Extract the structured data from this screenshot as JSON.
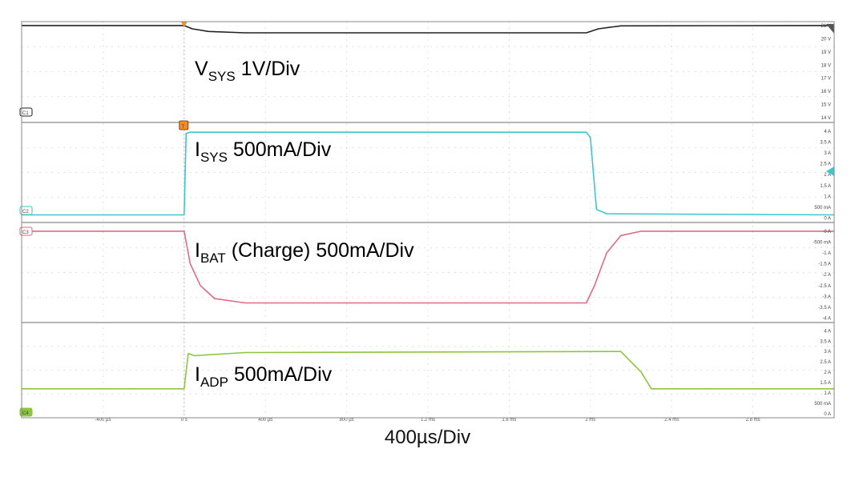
{
  "chart_data": {
    "type": "line",
    "timebase": "400µs/Div",
    "x_unit": "µs",
    "xlim": [
      -800,
      3200
    ],
    "x_ticks": [
      -400,
      0,
      400,
      800,
      1200,
      1600,
      2000,
      2400,
      2800
    ],
    "x_tick_labels": [
      "-400 µs",
      "0 s",
      "400 µs",
      "800 µs",
      "1.2 ms",
      "1.6 ms",
      "2 ms",
      "2.4 ms",
      "2.8 ms"
    ],
    "trigger_marker": "T",
    "colors": {
      "ch1": "#222222",
      "ch2": "#3ec6cf",
      "ch3": "#e06a80",
      "ch4": "#8cc63f"
    },
    "channels": [
      {
        "id": "C1",
        "label_main": "V",
        "label_sub": "SYS",
        "label_rest": " 1V/Div",
        "color": "#222222",
        "ylim": [
          13.7,
          21.3
        ],
        "y_tick_labels": [
          "21 V",
          "20 V",
          "19 V",
          "18 V",
          "17 V",
          "16 V",
          "15 V",
          "14 V"
        ],
        "y_tick_values": [
          21,
          20,
          19,
          18,
          17,
          16,
          15,
          14
        ],
        "points": [
          [
            -800,
            21.0
          ],
          [
            0,
            21.0
          ],
          [
            40,
            20.75
          ],
          [
            120,
            20.55
          ],
          [
            300,
            20.45
          ],
          [
            1800,
            20.45
          ],
          [
            1980,
            20.45
          ],
          [
            2040,
            20.75
          ],
          [
            2150,
            20.98
          ],
          [
            3200,
            21.0
          ]
        ]
      },
      {
        "id": "C2",
        "label_main": "I",
        "label_sub": "SYS",
        "label_rest": " 500mA/Div",
        "color": "#3ec6cf",
        "ylim": [
          -0.2,
          4.4
        ],
        "y_tick_labels": [
          "4 A",
          "3.5 A",
          "3 A",
          "2.5 A",
          "2 A",
          "1.5 A",
          "1 A",
          "500 mA",
          "0 A"
        ],
        "y_tick_values": [
          4,
          3.5,
          3,
          2.5,
          2,
          1.5,
          1,
          0.5,
          0
        ],
        "points": [
          [
            -800,
            0.15
          ],
          [
            0,
            0.15
          ],
          [
            10,
            3.9
          ],
          [
            30,
            3.95
          ],
          [
            1980,
            3.95
          ],
          [
            2000,
            3.7
          ],
          [
            2030,
            0.4
          ],
          [
            2080,
            0.2
          ],
          [
            3200,
            0.15
          ]
        ]
      },
      {
        "id": "C3",
        "label_main": "I",
        "label_sub": "BAT",
        "label_rest": " (Charge) 500mA/Div",
        "color": "#e06a80",
        "ylim": [
          -4.2,
          0.4
        ],
        "y_tick_labels": [
          "0 A",
          "-500 mA",
          "-1 A",
          "-1.5 A",
          "-2 A",
          "-2.5 A",
          "-3 A",
          "-3.5 A",
          "-4 A"
        ],
        "y_tick_values": [
          0,
          -0.5,
          -1,
          -1.5,
          -2,
          -2.5,
          -3,
          -3.5,
          -4
        ],
        "points": [
          [
            -800,
            0.0
          ],
          [
            0,
            0.0
          ],
          [
            30,
            -1.5
          ],
          [
            80,
            -2.5
          ],
          [
            150,
            -3.1
          ],
          [
            300,
            -3.3
          ],
          [
            1980,
            -3.3
          ],
          [
            2020,
            -2.5
          ],
          [
            2080,
            -1.0
          ],
          [
            2150,
            -0.2
          ],
          [
            2250,
            0.0
          ],
          [
            3200,
            0.0
          ]
        ]
      },
      {
        "id": "C4",
        "label_main": "I",
        "label_sub": "ADP",
        "label_rest": " 500mA/Div",
        "color": "#8cc63f",
        "ylim": [
          -0.2,
          4.4
        ],
        "y_tick_labels": [
          "4 A",
          "3.5 A",
          "3 A",
          "2.5 A",
          "2 A",
          "1.5 A",
          "1 A",
          "500 mA",
          "0 A"
        ],
        "y_tick_values": [
          4,
          3.5,
          3,
          2.5,
          2,
          1.5,
          1,
          0.5,
          0
        ],
        "points": [
          [
            -800,
            1.2
          ],
          [
            0,
            1.2
          ],
          [
            20,
            2.9
          ],
          [
            50,
            2.8
          ],
          [
            300,
            2.95
          ],
          [
            2150,
            3.0
          ],
          [
            2250,
            2.0
          ],
          [
            2300,
            1.2
          ],
          [
            3200,
            1.2
          ]
        ]
      }
    ]
  }
}
